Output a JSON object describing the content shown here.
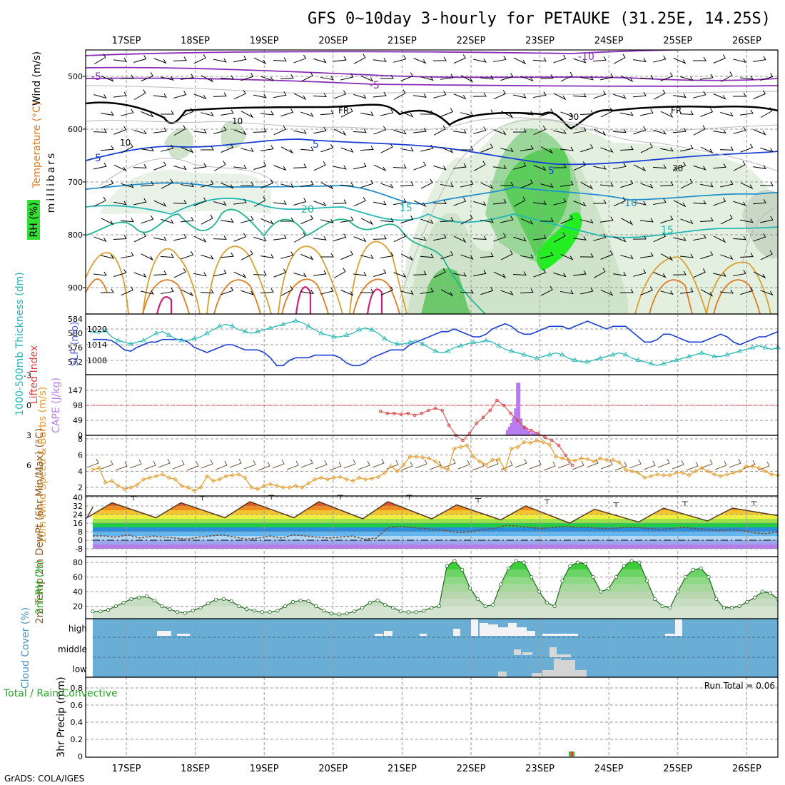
{
  "title": "GFS 0~10day 3-hourly for PETAUKE (31.25E, 14.25S)",
  "credit": "GrADS: COLA/IGES",
  "run_total": "Run Total = 0.06",
  "colors": {
    "rh_green": "#33dd33",
    "temp_orange": "#f08c1e",
    "cape_purple": "#b77df0",
    "cloud_blue": "#6aaed6",
    "slp_blue": "#1a3fd6",
    "thickness_cyan": "#1fb5b5",
    "wind_orange": "#e89a2a"
  },
  "chart_data": [
    {
      "type": "line",
      "title": "",
      "panel": "vertical-profile",
      "xlabel": "",
      "ylabel": "millibars",
      "side_labels": [
        "Wind (m/s)",
        "Temperature (°C)",
        "RH (%)"
      ],
      "categories": [
        "17SEP",
        "18SEP",
        "19SEP",
        "20SEP",
        "21SEP",
        "22SEP",
        "23SEP",
        "24SEP",
        "25SEP",
        "26SEP"
      ],
      "y_ticks": [
        500,
        600,
        700,
        800,
        900
      ],
      "contour_labels": [
        "-10",
        "-5",
        "-5",
        "FR",
        "FR",
        "-5",
        "5",
        "5",
        "-10",
        "20",
        "15",
        "10",
        "15",
        "10",
        "30",
        "30"
      ]
    },
    {
      "type": "line",
      "panel": "slp-thickness",
      "left_label": "1000-500mb Thickness (dm)",
      "right_label": "SLP (mb)",
      "left_ticks": [
        584,
        580,
        576,
        572
      ],
      "right_ticks": [
        1020,
        1014,
        1008
      ],
      "series": [
        {
          "name": "SLP (mb)",
          "axis": "right",
          "values": [
            1016,
            1016,
            1016,
            1015.5,
            1014,
            1012,
            1011.5,
            1013,
            1014,
            1015,
            1015,
            1016,
            1016,
            1016,
            1016,
            1015,
            1013,
            1012,
            1011,
            1012,
            1013,
            1014,
            1014,
            1013,
            1012,
            1012,
            1012,
            1011,
            1009,
            1006,
            1006,
            1008,
            1009,
            1009,
            1009,
            1010,
            1010,
            1010,
            1010,
            1009,
            1007,
            1006,
            1006,
            1007,
            1009,
            1010,
            1011,
            1012,
            1012,
            1012,
            1014,
            1015,
            1016,
            1017,
            1018,
            1019,
            1019,
            1020,
            1019,
            1018,
            1017,
            1017,
            1018,
            1020,
            1021,
            1022,
            1021,
            1019,
            1018,
            1018,
            1019,
            1020,
            1021,
            1021,
            1021,
            1020,
            1021,
            1022,
            1023,
            1022,
            1021,
            1020,
            1021,
            1021,
            1021,
            1019,
            1017,
            1015,
            1015,
            1016,
            1018,
            1018,
            1017,
            1016,
            1015,
            1015,
            1015,
            1016,
            1017,
            1018,
            1017,
            1015,
            1014,
            1015,
            1016,
            1017,
            1017,
            1018,
            1019
          ]
        },
        {
          "name": "1000-500mb Thickness (dm)",
          "axis": "left",
          "values": [
            580.5,
            580,
            580.8,
            579,
            578,
            577.5,
            577,
            577.5,
            578,
            579,
            580,
            580.5,
            579.5,
            578.5,
            578,
            578,
            578.5,
            579,
            580,
            581,
            582,
            582.5,
            582,
            581,
            580.5,
            580,
            580.5,
            581,
            581.5,
            582,
            582.5,
            583,
            583.5,
            583,
            582,
            581,
            580,
            579.5,
            579,
            579,
            579.5,
            580,
            581,
            581.5,
            581,
            580,
            578.5,
            577.5,
            577,
            577,
            577.5,
            578,
            577,
            576,
            575,
            574.5,
            575,
            576,
            576.5,
            577,
            577.5,
            577.5,
            578,
            577.5,
            576.5,
            575.5,
            575,
            574.5,
            574,
            573.5,
            573,
            573.5,
            574,
            574.5,
            574,
            573,
            572.5,
            572,
            572,
            572.5,
            573,
            573.5,
            574,
            574.5,
            574,
            573,
            572.5,
            572,
            571.5,
            571,
            571.5,
            572,
            572.5,
            573,
            573.5,
            574,
            574.5,
            574,
            573.5,
            573.5,
            574,
            574.5,
            575,
            575.5,
            576,
            576.5,
            576,
            575.5,
            576
          ]
        }
      ]
    },
    {
      "type": "bar",
      "panel": "cape-lifted-index",
      "left_label": "CAPE (J/kg)",
      "left_label2": "Lifted Index",
      "left_ticks": [
        "147",
        "98",
        "49",
        "0"
      ],
      "li_ticks": [
        "-3",
        "0",
        "3",
        "6"
      ],
      "cape_x": [
        60.6,
        60.9,
        61.2,
        61.5,
        61.8,
        62.1,
        62.4,
        62.8,
        63.2,
        63.6,
        64.3,
        64.6,
        65.0
      ],
      "cape_values": [
        18,
        28,
        40,
        60,
        88,
        172,
        55,
        30,
        25,
        15,
        10,
        8,
        4
      ],
      "li_x": [
        42,
        43,
        44,
        45,
        46,
        47,
        48,
        49,
        50,
        51,
        52,
        53,
        54,
        55,
        56,
        57,
        58,
        59,
        60,
        61,
        62,
        63,
        64,
        65,
        66,
        67,
        68,
        69,
        70
      ],
      "li_values": [
        0.6,
        0.8,
        0.8,
        0.9,
        0.8,
        1.0,
        0.8,
        0.5,
        0.3,
        0.5,
        2.0,
        3.0,
        3.5,
        2.8,
        1.8,
        1.2,
        0.5,
        -0.5,
        0.0,
        0.8,
        1.5,
        2.2,
        2.5,
        2.8,
        3.2,
        3.5,
        4.0,
        5.0,
        6.0
      ]
    },
    {
      "type": "line",
      "panel": "10m-wind",
      "left_label": "10m Wind Speed & Barbs (m/s)",
      "y_ticks": [
        2,
        4,
        6,
        8
      ],
      "series": [
        {
          "name": "10m Wind Speed",
          "values": [
            4.2,
            4.4,
            2.6,
            2.8,
            2.2,
            1.8,
            2.0,
            2.3,
            3.0,
            3.2,
            3.4,
            3.6,
            3.2,
            3.0,
            2.2,
            2.0,
            1.6,
            2.0,
            3.4,
            2.8,
            3.0,
            3.4,
            3.5,
            3.6,
            3.2,
            2.0,
            1.8,
            2.2,
            2.4,
            2.2,
            2.0,
            2.0,
            2.2,
            2.0,
            2.5,
            3.0,
            3.2,
            3.0,
            3.2,
            3.3,
            3.0,
            2.8,
            3.2,
            3.0,
            3.1,
            3.3,
            3.8,
            4.6,
            4.0,
            4.8,
            5.8,
            5.8,
            5.7,
            5.6,
            5.2,
            4.5,
            4.2,
            6.8,
            7.0,
            7.2,
            5.8,
            5.2,
            4.8,
            5.4,
            5.5,
            4.2,
            6.8,
            7.0,
            7.6,
            7.5,
            7.8,
            7.6,
            7.3,
            5.8,
            5.6,
            5.4,
            5.3,
            5.6,
            5.5,
            5.2,
            5.6,
            5.4,
            5.4,
            5.1,
            4.2,
            4.0,
            3.8,
            3.2,
            3.4,
            3.6,
            3.5,
            3.5,
            3.8,
            3.8,
            3.5,
            4.0,
            4.4,
            4.0,
            3.6,
            3.4,
            3.6,
            3.8,
            4.0,
            4.6,
            4.6,
            4.4,
            4.0,
            3.6,
            3.5
          ]
        }
      ]
    },
    {
      "type": "area",
      "panel": "2m-temp",
      "left_label": "2m Temp 2m DewPt (6hr Min/Max) (°C)",
      "y_ticks": [
        40,
        32,
        24,
        16,
        8,
        0,
        -8
      ],
      "temp_peaks": [
        35,
        35,
        36,
        36,
        36,
        33,
        32,
        29,
        30,
        30
      ],
      "temp_troughs": [
        21,
        21,
        21,
        21,
        20,
        20,
        19,
        16,
        17,
        18
      ],
      "dewpt_values": [
        4,
        4,
        3,
        5,
        2,
        4,
        3,
        2,
        1,
        3,
        4,
        5,
        3,
        1,
        2,
        4,
        2,
        5,
        4,
        3,
        2,
        3,
        4,
        1,
        2,
        12,
        13,
        12,
        11,
        10,
        9,
        7,
        8,
        10,
        11,
        14,
        13,
        12,
        11,
        12,
        13,
        12,
        12,
        11,
        11,
        12,
        12,
        11,
        10,
        11,
        12,
        11,
        10,
        9,
        10,
        9,
        7,
        6,
        8
      ]
    },
    {
      "type": "area",
      "panel": "2m-rh",
      "left_label": "2m RH (%)",
      "y_ticks": [
        20,
        40,
        60,
        80
      ],
      "values": [
        13,
        13,
        15,
        20,
        25,
        30,
        32,
        34,
        28,
        20,
        16,
        12,
        11,
        14,
        18,
        24,
        29,
        30,
        27,
        20,
        16,
        14,
        12,
        12,
        14,
        20,
        26,
        28,
        27,
        20,
        14,
        10,
        9,
        10,
        13,
        18,
        25,
        28,
        22,
        18,
        13,
        12,
        12,
        14,
        18,
        20,
        75,
        82,
        70,
        45,
        30,
        20,
        22,
        50,
        72,
        82,
        80,
        60,
        40,
        25,
        20,
        55,
        75,
        80,
        78,
        60,
        40,
        44,
        60,
        75,
        82,
        80,
        55,
        30,
        20,
        18,
        40,
        60,
        70,
        72,
        60,
        30,
        18,
        18,
        20,
        26,
        32,
        40,
        38,
        30
      ]
    },
    {
      "type": "bar",
      "panel": "cloud-cover",
      "left_label": "Cloud Cover (%)",
      "levels": [
        "high",
        "middle",
        "low"
      ]
    },
    {
      "type": "bar",
      "panel": "precip",
      "left_label": "3hr Precip (mm)",
      "left_label2": "Total / Rain Convective",
      "y_ticks": [
        "0",
        "0.2",
        "0.4",
        "0.6",
        "0.8"
      ],
      "values": [
        0.06
      ]
    }
  ]
}
